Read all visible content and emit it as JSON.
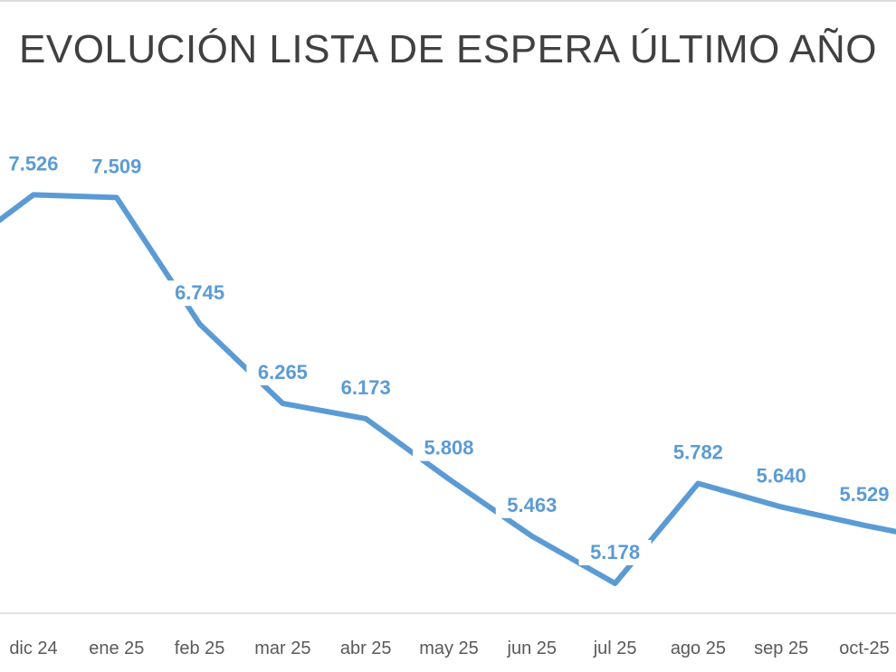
{
  "chart_data": {
    "type": "line",
    "title": "EVOLUCIÓN LISTA DE ESPERA ÚLTIMO AÑO",
    "categories": [
      "dic 24",
      "ene 25",
      "feb 25",
      "mar 25",
      "abr 25",
      "may 25",
      "jun 25",
      "jul 25",
      "ago 25",
      "sep 25",
      "oct-25"
    ],
    "series": [
      {
        "name": "Lista de espera",
        "values": [
          7526,
          7509,
          6745,
          6265,
          6173,
          5808,
          5463,
          5178,
          5782,
          5640,
          5529
        ]
      }
    ],
    "data_labels": [
      "7.526",
      "7.509",
      "6.745",
      "6.265",
      "6.173",
      "5.808",
      "5.463",
      "5.178",
      "5.782",
      "5.640",
      "5.529"
    ],
    "xlabel": "",
    "ylabel": "",
    "grid": false,
    "legend": "none",
    "line_color": "#5b9bd5"
  }
}
